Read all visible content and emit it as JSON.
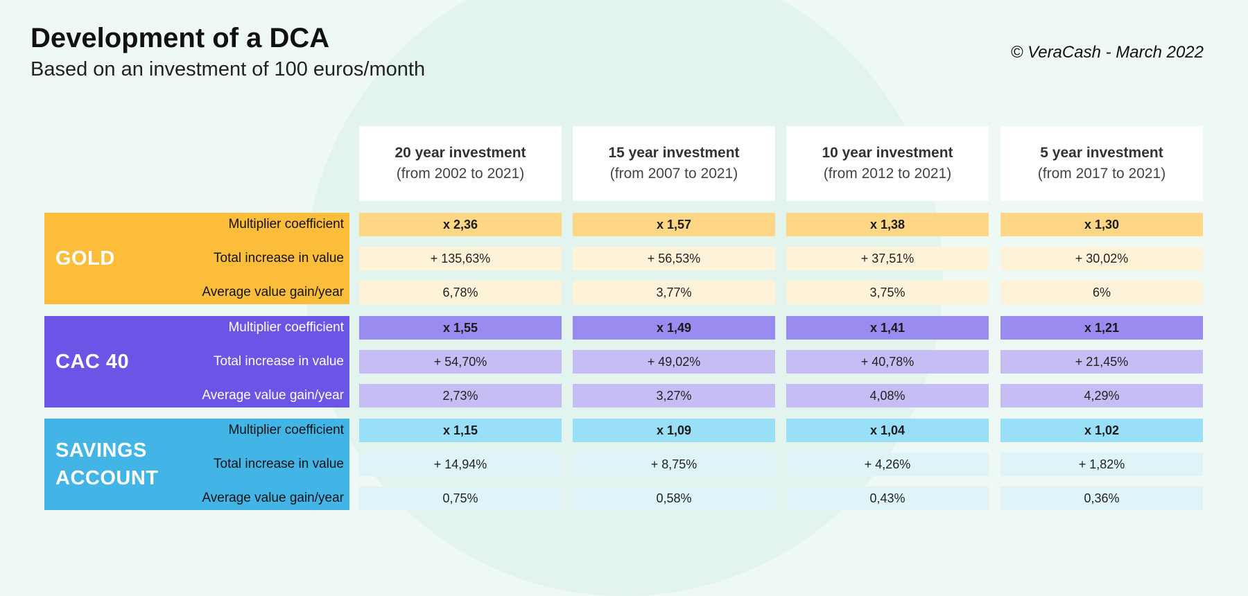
{
  "title": "Development of a DCA",
  "subtitle": "Based on an investment of 100 euros/month",
  "credit": "© VeraCash - March 2022",
  "columns": [
    {
      "title": "20 year investment",
      "range": "(from 2002 to 2021)"
    },
    {
      "title": "15 year investment",
      "range": "(from 2007 to 2021)"
    },
    {
      "title": "10 year investment",
      "range": "(from 2012 to 2021)"
    },
    {
      "title": "5 year investment",
      "range": "(from 2017 to 2021)"
    }
  ],
  "row_labels": [
    "Multiplier coefficient",
    "Total increase in value",
    "Average value gain/year"
  ],
  "assets": [
    {
      "name": "GOLD"
    },
    {
      "name": "CAC 40"
    },
    {
      "name": "SAVINGS ACCOUNT"
    }
  ],
  "chart_data": {
    "type": "table",
    "title": "Development of a DCA",
    "subtitle": "Based on an investment of 100 euros/month",
    "columns": [
      "20 year investment",
      "15 year investment",
      "10 year investment",
      "5 year investment"
    ],
    "column_ranges": [
      "(from 2002 to 2021)",
      "(from 2007 to 2021)",
      "(from 2012 to 2021)",
      "(from 2017 to 2021)"
    ],
    "metrics": [
      "Multiplier coefficient",
      "Total increase in value",
      "Average value gain/year"
    ],
    "rows": [
      {
        "asset": "GOLD",
        "values": [
          [
            "x 2,36",
            "x 1,57",
            "x 1,38",
            "x 1,30"
          ],
          [
            "+ 135,63%",
            "+ 56,53%",
            "+ 37,51%",
            "+ 30,02%"
          ],
          [
            "6,78%",
            "3,77%",
            "3,75%",
            "6%"
          ]
        ]
      },
      {
        "asset": "CAC 40",
        "values": [
          [
            "x 1,55",
            "x 1,49",
            "x 1,41",
            "x 1,21"
          ],
          [
            "+ 54,70%",
            "+ 49,02%",
            "+ 40,78%",
            "+ 21,45%"
          ],
          [
            "2,73%",
            "3,27%",
            "4,08%",
            "4,29%"
          ]
        ]
      },
      {
        "asset": "SAVINGS ACCOUNT",
        "values": [
          [
            "x 1,15",
            "x 1,09",
            "x 1,04",
            "x 1,02"
          ],
          [
            "+ 14,94%",
            "+ 8,75%",
            "+ 4,26%",
            "+ 1,82%"
          ],
          [
            "0,75%",
            "0,58%",
            "0,43%",
            "0,36%"
          ]
        ]
      }
    ]
  },
  "colors": {
    "gold_label": "#fbbd3a",
    "gold_dark": "#fdd785",
    "gold_light": "#fef3d9",
    "cac_label": "#6b55e6",
    "cac_dark": "#998bf0",
    "cac_light": "#c6bdf5",
    "sav_label": "#42b4e5",
    "sav_dark": "#99dff7",
    "sav_light": "#dff4f9"
  }
}
